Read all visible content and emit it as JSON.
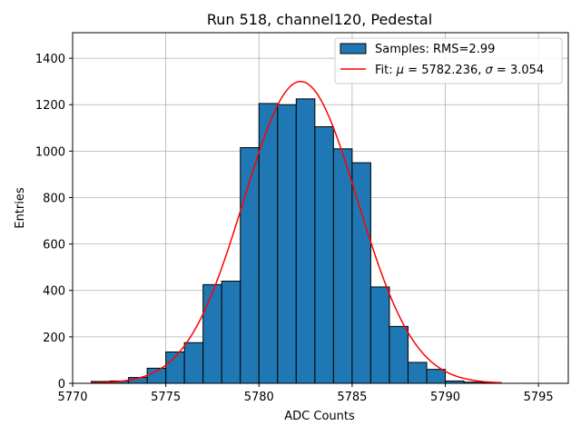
{
  "chart_data": {
    "type": "bar",
    "title": "Run 518, channel120, Pedestal",
    "xlabel": "ADC Counts",
    "ylabel": "Entries",
    "xlim": [
      5770,
      5796.6
    ],
    "ylim": [
      0,
      1510
    ],
    "xticks": [
      5770,
      5775,
      5780,
      5785,
      5790,
      5795
    ],
    "yticks": [
      0,
      200,
      400,
      600,
      800,
      1000,
      1200,
      1400
    ],
    "grid": true,
    "legend_position": "top-right",
    "bar_color": "#1f77b4",
    "fit_color": "#ff0000",
    "histogram": {
      "name": "Samples: RMS=2.99",
      "bin_width": 1,
      "bin_lefts": [
        5771,
        5772,
        5773,
        5774,
        5775,
        5776,
        5777,
        5778,
        5779,
        5780,
        5781,
        5782,
        5783,
        5784,
        5785,
        5786,
        5787,
        5788,
        5789,
        5790,
        5791,
        5792
      ],
      "values": [
        8,
        10,
        25,
        65,
        135,
        175,
        425,
        440,
        1015,
        1205,
        1200,
        1225,
        1105,
        1010,
        950,
        415,
        245,
        90,
        60,
        10,
        5,
        3
      ]
    },
    "fit": {
      "name_prefix": "Fit: ",
      "mu_value": "5782.236",
      "sigma_value": "3.054",
      "mu": 5782.236,
      "sigma": 3.054,
      "amplitude": 1300,
      "x_range": [
        5771,
        5793
      ]
    }
  }
}
